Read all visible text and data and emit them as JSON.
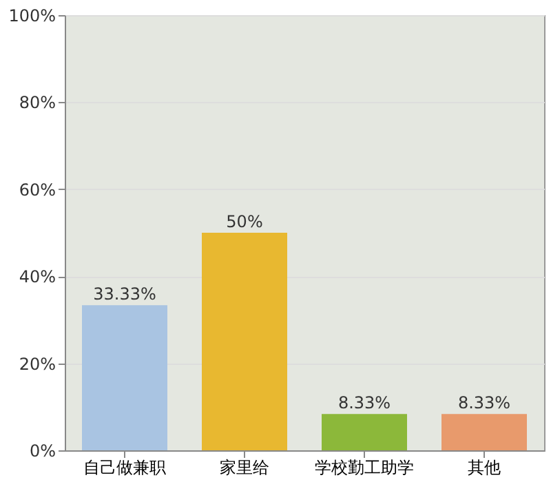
{
  "chart_data": {
    "type": "bar",
    "categories": [
      "自己做兼职",
      "家里给",
      "学校勤工助学",
      "其他"
    ],
    "values": [
      33.33,
      50,
      8.33,
      8.33
    ],
    "value_labels": [
      "33.33%",
      "50%",
      "8.33%",
      "8.33%"
    ],
    "colors": [
      "#a9c4e2",
      "#e8b830",
      "#8cb83a",
      "#e89a6c"
    ],
    "ylim": [
      0,
      100
    ],
    "yticks": [
      {
        "value": 0,
        "label": "0%"
      },
      {
        "value": 20,
        "label": "20%"
      },
      {
        "value": 40,
        "label": "40%"
      },
      {
        "value": 60,
        "label": "60%"
      },
      {
        "value": 80,
        "label": "80%"
      },
      {
        "value": 100,
        "label": "100%"
      }
    ],
    "grid": "y"
  }
}
